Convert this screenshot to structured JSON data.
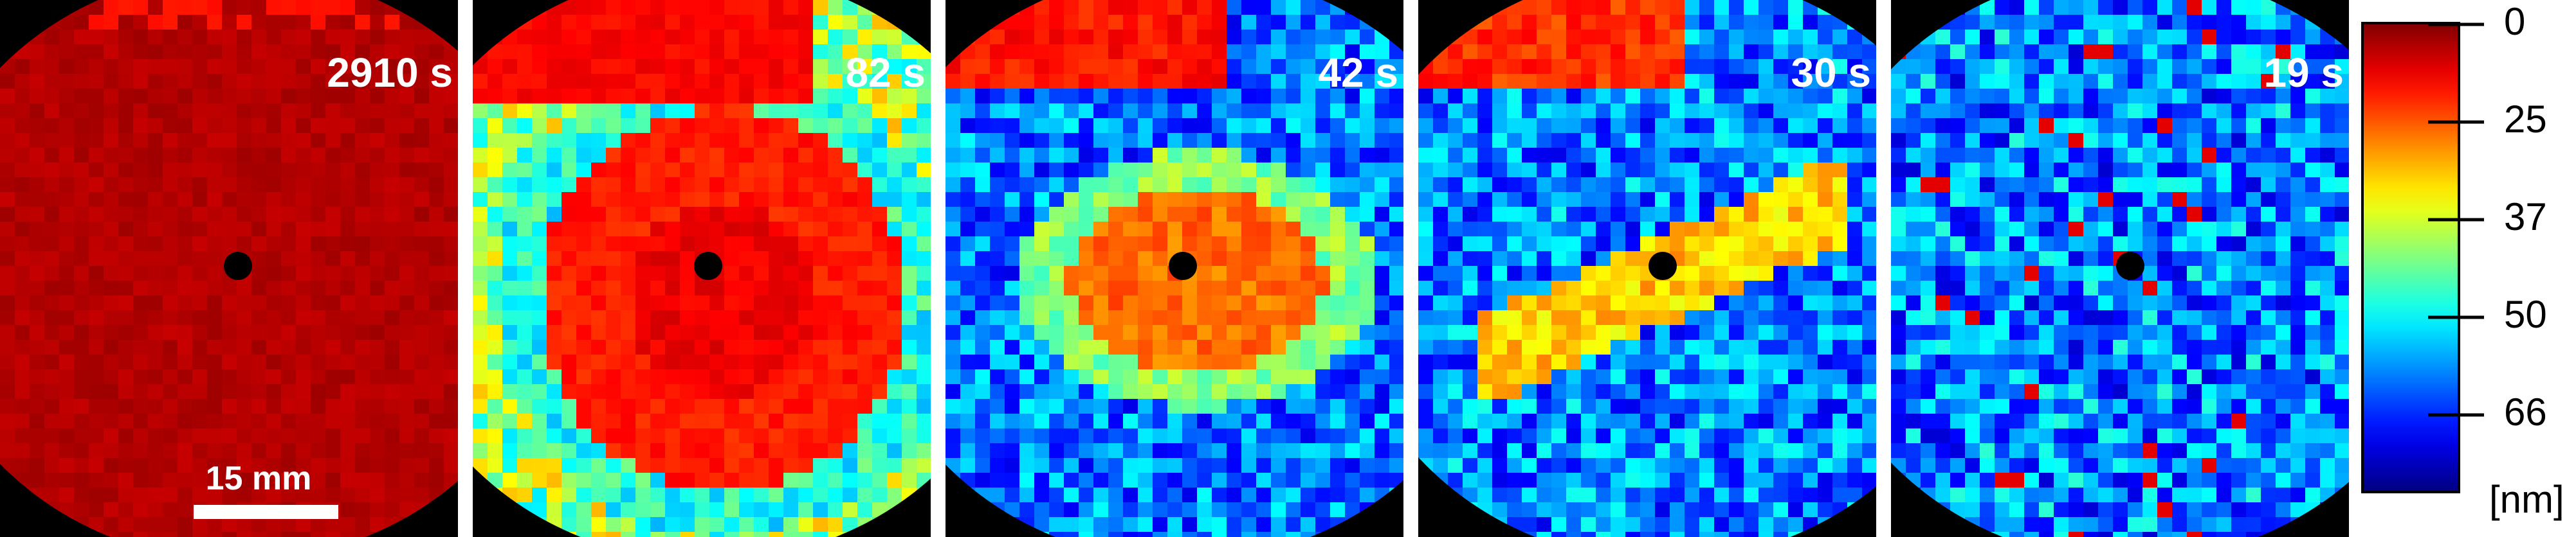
{
  "panels": [
    {
      "time": "2910 s"
    },
    {
      "time": "82 s"
    },
    {
      "time": "42 s"
    },
    {
      "time": "30 s"
    },
    {
      "time": "19 s"
    }
  ],
  "scale_bar": "15 mm",
  "colorbar": {
    "ticks": [
      "0",
      "25",
      "37",
      "50",
      "66"
    ],
    "unit": "[nm]"
  }
}
